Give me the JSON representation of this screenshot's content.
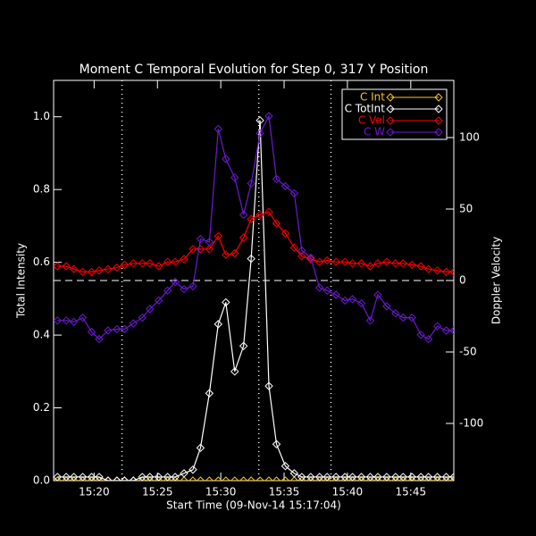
{
  "chart_data": {
    "type": "line",
    "title": "Moment C Temporal Evolution for Step 0, 317 Y Position",
    "x_label": "Start Time (09-Nov-14 15:17:04)",
    "y_label": "Total Intensity",
    "y2_label": "Doppler Velocity",
    "xlim": [
      16.8,
      48.4
    ],
    "ylim": [
      0,
      1.1
    ],
    "y2lim": [
      -140,
      140
    ],
    "xticks": [
      {
        "value": 20,
        "label": "15:20"
      },
      {
        "value": 25,
        "label": "15:25"
      },
      {
        "value": 30,
        "label": "15:30"
      },
      {
        "value": 35,
        "label": "15:35"
      },
      {
        "value": 40,
        "label": "15:40"
      },
      {
        "value": 45,
        "label": "15:45"
      }
    ],
    "yticks": [
      {
        "value": 0,
        "label": "0.0"
      },
      0.2,
      0.4,
      0.6,
      0.8,
      {
        "value": 1,
        "label": "1.0"
      }
    ],
    "y2ticks": [
      -100,
      -50,
      0,
      50,
      100
    ],
    "vlines": [
      22.2,
      33.0,
      38.7
    ],
    "hline_y2": 0,
    "legend": "top-right",
    "x": [
      17.1,
      17.8,
      18.4,
      19.1,
      19.8,
      20.4,
      21.1,
      21.8,
      22.4,
      23.1,
      23.8,
      24.4,
      25.1,
      25.8,
      26.4,
      27.1,
      27.8,
      28.4,
      29.1,
      29.8,
      30.4,
      31.1,
      31.8,
      32.4,
      33.1,
      33.8,
      34.4,
      35.1,
      35.8,
      36.4,
      37.1,
      37.8,
      38.4,
      39.1,
      39.8,
      40.4,
      41.1,
      41.8,
      42.4,
      43.1,
      43.8,
      44.4,
      45.1,
      45.8,
      46.4,
      47.1,
      47.8,
      48.4
    ],
    "series": [
      {
        "name": "C Int",
        "color": "#f4c430",
        "axis": "y",
        "values": [
          0,
          0,
          0,
          0,
          0,
          0,
          0,
          0,
          0,
          0,
          0,
          0,
          0,
          0,
          0,
          0,
          0,
          0,
          0,
          0,
          0,
          0,
          0,
          0,
          0,
          0,
          0,
          0,
          0,
          0,
          0,
          0,
          0,
          0,
          0,
          0,
          0,
          0,
          0,
          0,
          0,
          0,
          0,
          0,
          0,
          0,
          0,
          0
        ]
      },
      {
        "name": "C TotInt",
        "color": "#ffffff",
        "axis": "y",
        "values": [
          0.01,
          0.01,
          0.01,
          0.01,
          0.01,
          0.01,
          0,
          0,
          0,
          0,
          0.01,
          0.01,
          0.01,
          0.01,
          0.01,
          0.02,
          0.03,
          0.09,
          0.24,
          0.43,
          0.49,
          0.3,
          0.37,
          0.61,
          0.99,
          0.26,
          0.1,
          0.04,
          0.02,
          0.01,
          0.01,
          0.01,
          0.01,
          0.01,
          0.01,
          0.01,
          0.01,
          0.01,
          0.01,
          0.01,
          0.01,
          0.01,
          0.01,
          0.01,
          0.01,
          0.01,
          0.01,
          0.01
        ]
      },
      {
        "name": "C Vel",
        "color": "#ff0000",
        "axis": "y2",
        "values": [
          10,
          10,
          8,
          6,
          6,
          7,
          8,
          9,
          11,
          12,
          12,
          12,
          10,
          13,
          13,
          15,
          22,
          22,
          22,
          31,
          18,
          19,
          30,
          43,
          46,
          48,
          40,
          33,
          23,
          17,
          15,
          13,
          14,
          13,
          13,
          12,
          12,
          10,
          12,
          13,
          12,
          12,
          11,
          10,
          8,
          7,
          6,
          6
        ]
      },
      {
        "name": "C W",
        "color": "#6a1bd0",
        "axis": "y2",
        "values": [
          -28,
          -28,
          -29,
          -26,
          -36,
          -41,
          -35,
          -34,
          -34,
          -30,
          -26,
          -20,
          -14,
          -7,
          -1,
          -6,
          -4,
          29,
          27,
          106,
          85,
          72,
          46,
          68,
          103,
          115,
          71,
          66,
          61,
          21,
          16,
          -5,
          -7,
          -10,
          -14,
          -13,
          -16,
          -28,
          -10,
          -18,
          -23,
          -26,
          -26,
          -38,
          -41,
          -32,
          -35,
          -35
        ]
      }
    ]
  }
}
